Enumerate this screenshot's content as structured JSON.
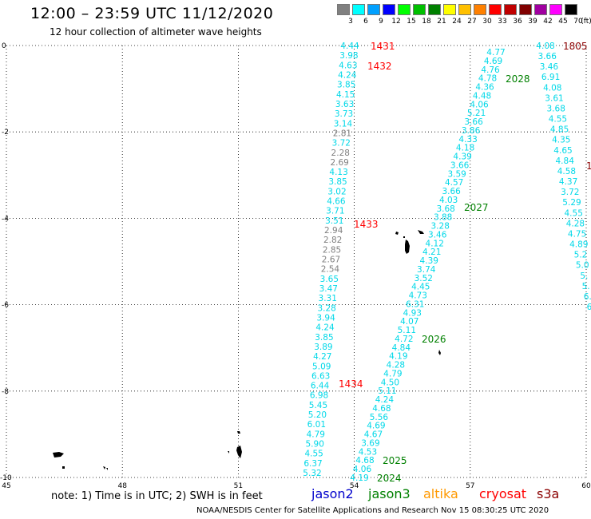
{
  "header": {
    "title": "12:00 – 23:59 UTC 11/12/2020",
    "subtitle": "12 hour collection of altimeter wave heights"
  },
  "legend": {
    "unit_label": "(ft)",
    "levels": [
      "3",
      "6",
      "9",
      "12",
      "15",
      "18",
      "21",
      "24",
      "27",
      "30",
      "33",
      "36",
      "39",
      "42",
      "45",
      "70"
    ],
    "colors": [
      "#808080",
      "#00ffff",
      "#00a0ff",
      "#0000ff",
      "#00ff00",
      "#00c000",
      "#008000",
      "#ffff00",
      "#ffc000",
      "#ff8000",
      "#ff0000",
      "#c00000",
      "#800000",
      "#a000a0",
      "#ff00ff",
      "#000000"
    ]
  },
  "map": {
    "lon_labels": [
      "45",
      "48",
      "51",
      "54",
      "57",
      "60"
    ],
    "lat_labels": [
      "0",
      "-2",
      "-4",
      "-6",
      "-8",
      "-10"
    ],
    "lon_range": [
      45,
      60
    ],
    "lat_range": [
      -10,
      0
    ],
    "grid": "dotted"
  },
  "colors": {
    "cyan": "#00d8e8",
    "gray": "#808080",
    "jason2": "#0000cc",
    "jason3": "#008000",
    "altika": "#ff9900",
    "cryosat": "#ff0000",
    "s3a": "#8b0000"
  },
  "tracks": {
    "t1_top": [
      "4.44",
      "3.98",
      "4.63",
      "4.24",
      "3.85",
      "4.15",
      "3.63",
      "3.73",
      "3.14",
      "2.81",
      "3.72",
      "2.28",
      "2.69",
      "4.13",
      "3.85",
      "3.02",
      "4.66",
      "3.71",
      "3.51",
      "2.94",
      "2.82",
      "2.85",
      "2.67",
      "2.54",
      "3.65",
      "3.47",
      "3.31",
      "3.28",
      "3.94",
      "4.24",
      "3.85",
      "3.89",
      "4.27",
      "5.09",
      "6.63",
      "6.44",
      "6.98",
      "5.45",
      "5.20",
      "6.01",
      "4.79",
      "5.90",
      "4.55",
      "6.37",
      "5.32"
    ],
    "t2": [
      "4.77",
      "4.69",
      "4.76",
      "4.78",
      "4.36",
      "4.48",
      "4.06",
      "5.21",
      "3.66",
      "3.86",
      "4.33",
      "4.18",
      "4.39",
      "3.66",
      "3.59",
      "4.57",
      "3.66",
      "4.03",
      "3.68",
      "3.88",
      "3.28",
      "3.46",
      "4.12",
      "4.21",
      "4.39",
      "3.74",
      "3.52",
      "4.45",
      "4.73",
      "6.31",
      "4.93",
      "4.07",
      "5.11",
      "4.72",
      "4.84",
      "4.19",
      "4.28",
      "4.79",
      "4.50",
      "5.11",
      "4.24",
      "4.68",
      "5.56",
      "4.69",
      "4.67",
      "3.69",
      "4.53",
      "4.68",
      "4.06",
      "4.19"
    ],
    "t3": [
      "4.08",
      "3.66",
      "3.46",
      "6.91",
      "4.08",
      "3.61",
      "3.68",
      "4.55",
      "4.85",
      "4.35",
      "4.65",
      "4.84",
      "4.58",
      "4.37",
      "3.72",
      "5.29",
      "4.55",
      "4.28",
      "4.75",
      "4.89",
      "5.2",
      "5.0",
      "5.",
      "5.",
      "6.",
      "6"
    ]
  },
  "time_labels": {
    "t1431": "1431",
    "t1432": "1432",
    "t1433": "1433",
    "t1434": "1434",
    "t2028": "2028",
    "t2027": "2027",
    "t2026": "2026",
    "t2025": "2025",
    "t2024": "2024",
    "t1805": "1805",
    "t_edge": "1"
  },
  "notes": {
    "note": "note:  1) Time is in UTC;  2) SWH is in feet",
    "satellites": [
      "jason2",
      "jason3",
      "altika",
      "cryosat",
      "s3a"
    ],
    "footer": "NOAA/NESDIS Center for Satellite Applications and Research     Nov 15 08:30:25 UTC 2020"
  }
}
